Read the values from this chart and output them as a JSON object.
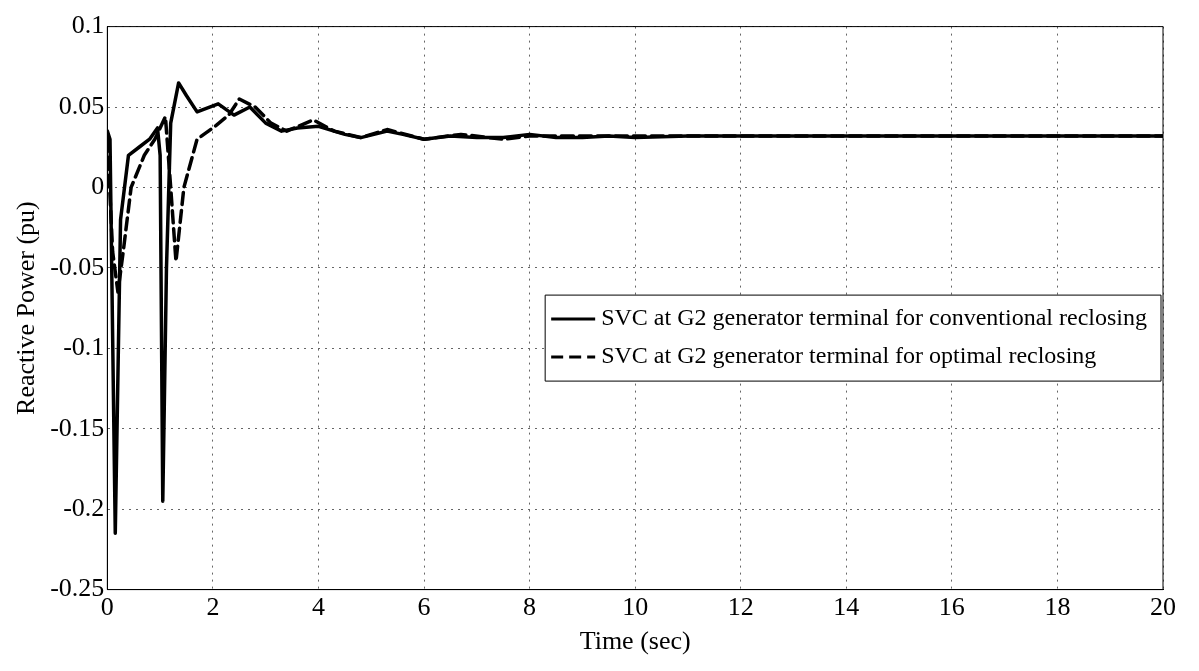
{
  "chart_data": {
    "type": "line",
    "xlabel": "Time (sec)",
    "ylabel": "Reactive Power (pu)",
    "xlim": [
      0,
      20
    ],
    "xticks": [
      0,
      2,
      4,
      6,
      8,
      10,
      12,
      14,
      16,
      18,
      20
    ],
    "ylim": [
      -0.25,
      0.1
    ],
    "yticks": [
      -0.25,
      -0.2,
      -0.15,
      -0.1,
      -0.05,
      0,
      0.05,
      0.1
    ],
    "grid": true,
    "legend": "right",
    "series": [
      {
        "name": "SVC at G2 generator terminal for conventional reclosing",
        "color": "#000000",
        "line_style": "solid",
        "x": [
          0,
          0.05,
          0.15,
          0.25,
          0.4,
          0.6,
          0.8,
          0.95,
          1.0,
          1.05,
          1.12,
          1.2,
          1.35,
          1.5,
          1.7,
          2.1,
          2.4,
          2.7,
          3.0,
          3.3,
          3.6,
          4.0,
          4.5,
          4.8,
          5.3,
          5.6,
          6.0,
          6.5,
          7.0,
          7.5,
          8.0,
          8.5,
          9.0,
          9.5,
          10,
          11,
          12,
          14,
          16,
          18,
          20
        ],
        "values": [
          0.035,
          0.03,
          -0.215,
          -0.02,
          0.02,
          0.025,
          0.03,
          0.037,
          0.02,
          -0.195,
          -0.05,
          0.04,
          0.065,
          0.057,
          0.047,
          0.052,
          0.045,
          0.05,
          0.04,
          0.035,
          0.037,
          0.038,
          0.033,
          0.031,
          0.035,
          0.033,
          0.03,
          0.032,
          0.031,
          0.031,
          0.033,
          0.031,
          0.031,
          0.032,
          0.031,
          0.032,
          0.032,
          0.032,
          0.032,
          0.032,
          0.032
        ]
      },
      {
        "name": "SVC at G2 generator terminal for optimal reclosing",
        "color": "#000000",
        "line_style": "dashed",
        "x": [
          0,
          0.1,
          0.2,
          0.3,
          0.45,
          0.7,
          0.9,
          1.1,
          1.2,
          1.3,
          1.45,
          1.7,
          2.0,
          2.3,
          2.5,
          2.8,
          3.1,
          3.4,
          3.9,
          4.3,
          4.8,
          5.3,
          6.0,
          6.7,
          7.5,
          8.0,
          9,
          10,
          12,
          14,
          16,
          18,
          20
        ],
        "values": [
          0.03,
          -0.04,
          -0.065,
          -0.04,
          0,
          0.02,
          0.03,
          0.044,
          0.0,
          -0.046,
          0,
          0.03,
          0.037,
          0.045,
          0.055,
          0.05,
          0.04,
          0.035,
          0.042,
          0.035,
          0.031,
          0.036,
          0.03,
          0.033,
          0.03,
          0.032,
          0.032,
          0.032,
          0.032,
          0.032,
          0.032,
          0.032,
          0.032
        ]
      }
    ]
  }
}
